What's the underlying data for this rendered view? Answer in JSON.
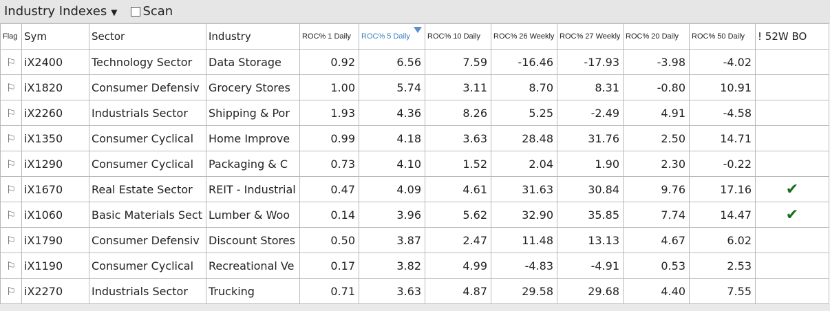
{
  "toolbar": {
    "title": "Industry Indexes",
    "dropdown_glyph": "▼",
    "scan_label": "Scan",
    "scan_checked": false
  },
  "table": {
    "headers": [
      "Flag",
      "Sym",
      "Sector",
      "Industry",
      "ROC% 1 Daily",
      "ROC% 5 Daily",
      "ROC% 10 Daily",
      "ROC% 26 Weekly",
      "ROC% 27 Weekly",
      "ROC% 20 Daily",
      "ROC% 50 Daily",
      "! 52W BO"
    ],
    "sorted_column": "ROC% 5 Daily",
    "flag_glyph": "⚐",
    "check_glyph": "✔",
    "rows": [
      {
        "sym": "iX2400",
        "sector": "Technology Sector",
        "industry": "Data Storage",
        "roc1d": "0.92",
        "roc5d": "6.56",
        "roc10d": "7.59",
        "roc26w": "-16.46",
        "roc27w": "-17.93",
        "roc20d": "-3.98",
        "roc50d": "-4.02",
        "bo52w": false
      },
      {
        "sym": "iX1820",
        "sector": "Consumer Defensiv",
        "industry": "Grocery Stores",
        "roc1d": "1.00",
        "roc5d": "5.74",
        "roc10d": "3.11",
        "roc26w": "8.70",
        "roc27w": "8.31",
        "roc20d": "-0.80",
        "roc50d": "10.91",
        "bo52w": false
      },
      {
        "sym": "iX2260",
        "sector": "Industrials Sector",
        "industry": "Shipping & Por",
        "roc1d": "1.93",
        "roc5d": "4.36",
        "roc10d": "8.26",
        "roc26w": "5.25",
        "roc27w": "-2.49",
        "roc20d": "4.91",
        "roc50d": "-4.58",
        "bo52w": false
      },
      {
        "sym": "iX1350",
        "sector": "Consumer Cyclical",
        "industry": "Home Improve",
        "roc1d": "0.99",
        "roc5d": "4.18",
        "roc10d": "3.63",
        "roc26w": "28.48",
        "roc27w": "31.76",
        "roc20d": "2.50",
        "roc50d": "14.71",
        "bo52w": false
      },
      {
        "sym": "iX1290",
        "sector": "Consumer Cyclical",
        "industry": "Packaging & C",
        "roc1d": "0.73",
        "roc5d": "4.10",
        "roc10d": "1.52",
        "roc26w": "2.04",
        "roc27w": "1.90",
        "roc20d": "2.30",
        "roc50d": "-0.22",
        "bo52w": false
      },
      {
        "sym": "iX1670",
        "sector": "Real Estate Sector",
        "industry": "REIT - Industrial",
        "roc1d": "0.47",
        "roc5d": "4.09",
        "roc10d": "4.61",
        "roc26w": "31.63",
        "roc27w": "30.84",
        "roc20d": "9.76",
        "roc50d": "17.16",
        "bo52w": true
      },
      {
        "sym": "iX1060",
        "sector": "Basic Materials Sect",
        "industry": "Lumber & Woo",
        "roc1d": "0.14",
        "roc5d": "3.96",
        "roc10d": "5.62",
        "roc26w": "32.90",
        "roc27w": "35.85",
        "roc20d": "7.74",
        "roc50d": "14.47",
        "bo52w": true
      },
      {
        "sym": "iX1790",
        "sector": "Consumer Defensiv",
        "industry": "Discount Stores",
        "roc1d": "0.50",
        "roc5d": "3.87",
        "roc10d": "2.47",
        "roc26w": "11.48",
        "roc27w": "13.13",
        "roc20d": "4.67",
        "roc50d": "6.02",
        "bo52w": false
      },
      {
        "sym": "iX1190",
        "sector": "Consumer Cyclical",
        "industry": "Recreational Ve",
        "roc1d": "0.17",
        "roc5d": "3.82",
        "roc10d": "4.99",
        "roc26w": "-4.83",
        "roc27w": "-4.91",
        "roc20d": "0.53",
        "roc50d": "2.53",
        "bo52w": false
      },
      {
        "sym": "iX2270",
        "sector": "Industrials Sector",
        "industry": "Trucking",
        "roc1d": "0.71",
        "roc5d": "3.63",
        "roc10d": "4.87",
        "roc26w": "29.58",
        "roc27w": "29.68",
        "roc20d": "4.40",
        "roc50d": "7.55",
        "bo52w": false
      }
    ]
  }
}
